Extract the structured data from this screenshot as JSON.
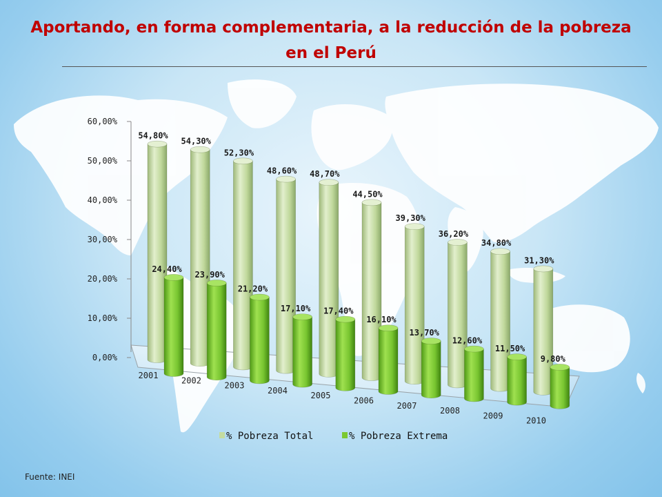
{
  "slide": {
    "title": "Aportando, en forma complementaria, a la reducción de la pobreza en el Perú",
    "source": "Fuente: INEI"
  },
  "colors": {
    "title": "#c00000",
    "series_total": "#c4dca0",
    "series_extrema": "#7cc832",
    "map_land": "#ffffff",
    "background": "#aad8f2"
  },
  "chart_data": {
    "type": "bar",
    "categories": [
      "2001",
      "2002",
      "2003",
      "2004",
      "2005",
      "2006",
      "2007",
      "2008",
      "2009",
      "2010"
    ],
    "series": [
      {
        "name": "% Pobreza Total",
        "values": [
          54.8,
          54.3,
          52.3,
          48.6,
          48.7,
          44.5,
          39.3,
          36.2,
          34.8,
          31.3
        ],
        "labels": [
          "54,80%",
          "54,30%",
          "52,30%",
          "48,60%",
          "48,70%",
          "44,50%",
          "39,30%",
          "36,20%",
          "34,80%",
          "31,30%"
        ]
      },
      {
        "name": "% Pobreza Extrema",
        "values": [
          24.4,
          23.9,
          21.2,
          17.1,
          17.4,
          16.1,
          13.7,
          12.6,
          11.5,
          9.8
        ],
        "labels": [
          "24,40%",
          "23,90%",
          "21,20%",
          "17,10%",
          "17,40%",
          "16,10%",
          "13,70%",
          "12,60%",
          "11,50%",
          "9,80%"
        ]
      }
    ],
    "yaxis": {
      "min": 0,
      "max": 60,
      "ticks": [
        "0,00%",
        "10,00%",
        "20,00%",
        "30,00%",
        "40,00%",
        "50,00%",
        "60,00%"
      ]
    },
    "grid": false,
    "legend_position": "bottom",
    "style": "3d-cylinder"
  }
}
